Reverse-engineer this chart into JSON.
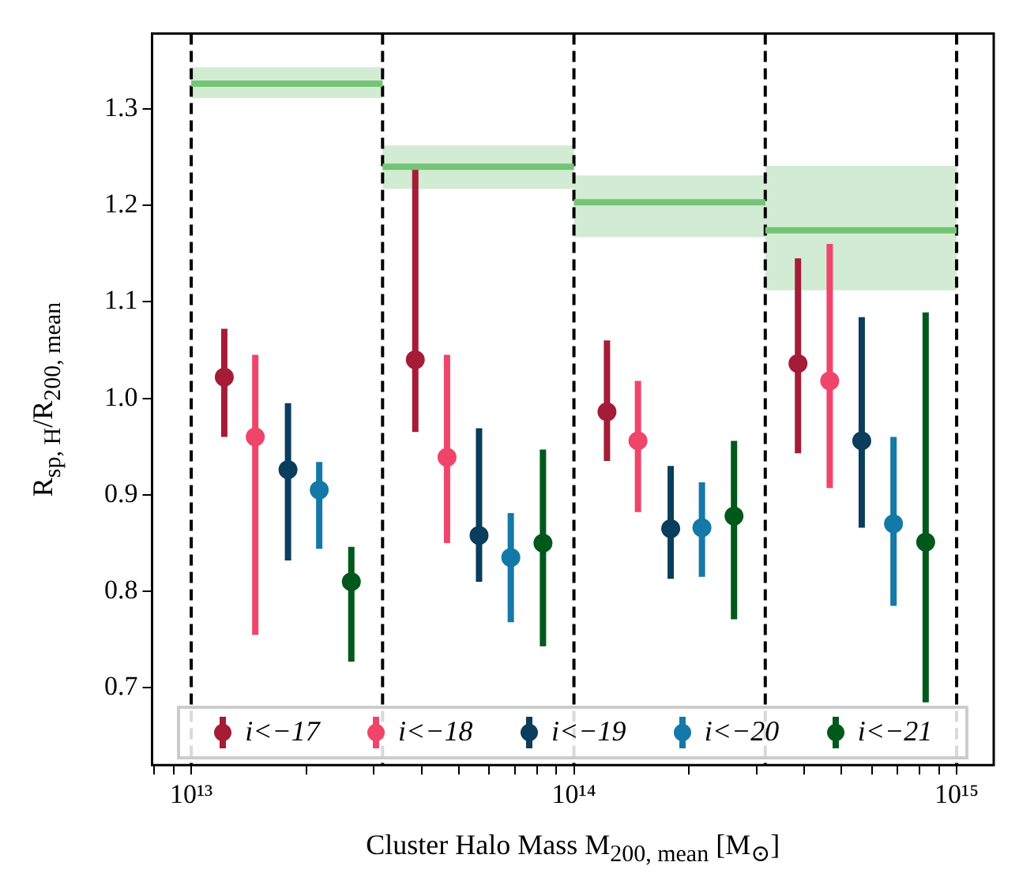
{
  "chart_data": {
    "type": "scatter",
    "xlabel": "Cluster Halo Mass M$_{200, mean}$ [M$_{⊙}$]",
    "ylabel": "R$_{sp, H}$/R$_{200, mean}$",
    "log": "x",
    "xlim": [
      7900000000000.0,
      1250000000000000.0
    ],
    "ylim": [
      0.62,
      1.378
    ],
    "xticks": [
      {
        "value": 8000000000000.0,
        "label": null
      },
      {
        "value": 9000000000000.0,
        "label": null
      },
      {
        "value": 10000000000000.0,
        "label": "10¹³"
      },
      {
        "value": 20000000000000.0,
        "label": null
      },
      {
        "value": 30000000000000.0,
        "label": null
      },
      {
        "value": 40000000000000.0,
        "label": null
      },
      {
        "value": 50000000000000.0,
        "label": null
      },
      {
        "value": 60000000000000.0,
        "label": null
      },
      {
        "value": 70000000000000.0,
        "label": null
      },
      {
        "value": 80000000000000.0,
        "label": null
      },
      {
        "value": 90000000000000.0,
        "label": null
      },
      {
        "value": 100000000000000.0,
        "label": "10¹⁴"
      },
      {
        "value": 200000000000000.0,
        "label": null
      },
      {
        "value": 300000000000000.0,
        "label": null
      },
      {
        "value": 400000000000000.0,
        "label": null
      },
      {
        "value": 500000000000000.0,
        "label": null
      },
      {
        "value": 600000000000000.0,
        "label": null
      },
      {
        "value": 700000000000000.0,
        "label": null
      },
      {
        "value": 800000000000000.0,
        "label": null
      },
      {
        "value": 900000000000000.0,
        "label": null
      },
      {
        "value": 1000000000000000.0,
        "label": "10¹⁵"
      }
    ],
    "yticks": [
      0.7,
      0.8,
      0.9,
      {
        "value": 1.0,
        "label": "1.0"
      },
      1.1,
      1.2,
      1.3
    ],
    "grid": false,
    "legend": "bottom",
    "series": [
      {
        "marker": "circle",
        "name": "i<−17",
        "color": "#a51c36",
        "x": [
          12200000000000.0,
          38500000000000.0,
          122000000000000.0,
          385000000000000.0
        ],
        "values": [
          1.022,
          1.04,
          0.986,
          1.036
        ],
        "errors": [
          [
            0.96,
            1.072
          ],
          [
            0.965,
            1.242
          ],
          [
            0.935,
            1.06
          ],
          [
            0.943,
            1.145
          ]
        ]
      },
      {
        "marker": "circle",
        "name": "i<−18",
        "color": "#f0456a",
        "x": [
          14700000000000.0,
          46600000000000.0,
          147000000000000.0,
          466000000000000.0
        ],
        "values": [
          0.96,
          0.939,
          0.956,
          1.018
        ],
        "errors": [
          [
            0.755,
            1.045
          ],
          [
            0.85,
            1.045
          ],
          [
            0.882,
            1.018
          ],
          [
            0.907,
            1.16
          ]
        ]
      },
      {
        "marker": "circle",
        "name": "i<−19",
        "color": "#0b3d5c",
        "x": [
          17900000000000.0,
          56500000000000.0,
          179000000000000.0,
          565000000000000.0
        ],
        "values": [
          0.926,
          0.858,
          0.865,
          0.956
        ],
        "errors": [
          [
            0.832,
            0.995
          ],
          [
            0.81,
            0.969
          ],
          [
            0.813,
            0.93
          ],
          [
            0.866,
            1.084
          ]
        ]
      },
      {
        "marker": "circle",
        "name": "i<−20",
        "color": "#1479a8",
        "x": [
          21600000000000.0,
          68400000000000.0,
          216000000000000.0,
          684000000000000.0
        ],
        "values": [
          0.905,
          0.835,
          0.866,
          0.87
        ],
        "errors": [
          [
            0.844,
            0.934
          ],
          [
            0.768,
            0.881
          ],
          [
            0.815,
            0.913
          ],
          [
            0.785,
            0.96
          ]
        ]
      },
      {
        "marker": "circle",
        "name": "i<−21",
        "color": "#00591a",
        "x": [
          26200000000000.0,
          83000000000000.0,
          262000000000000.0,
          830000000000000.0
        ],
        "values": [
          0.81,
          0.85,
          0.878,
          0.851
        ],
        "errors": [
          [
            0.727,
            0.846
          ],
          [
            0.743,
            0.947
          ],
          [
            0.771,
            0.956
          ],
          [
            0.685,
            1.089
          ]
        ]
      },
      {
        "type": "line",
        "color": "#74c476",
        "x": [
          10000000000000.0,
          31620000000000.0
        ],
        "values": [
          1.326,
          1.326
        ],
        "lower": [
          1.311,
          1.311
        ],
        "upper": [
          1.343,
          1.343
        ]
      },
      {
        "type": "line",
        "color": "#74c476",
        "x": [
          31620000000000.0,
          100000000000000.0
        ],
        "values": [
          1.24,
          1.24
        ],
        "lower": [
          1.217,
          1.217
        ],
        "upper": [
          1.262,
          1.262
        ]
      },
      {
        "type": "line",
        "color": "#74c476",
        "x": [
          100000000000000.0,
          316200000000000.0
        ],
        "values": [
          1.203,
          1.203
        ],
        "lower": [
          1.167,
          1.167
        ],
        "upper": [
          1.231,
          1.231
        ]
      },
      {
        "type": "line",
        "color": "#74c476",
        "x": [
          316200000000000.0,
          1000000000000000.0
        ],
        "values": [
          1.174,
          1.174
        ],
        "lower": [
          1.112,
          1.112
        ],
        "upper": [
          1.241,
          1.241
        ]
      }
    ],
    "ref_lines": [
      {
        "axis": "x",
        "value": 10000000000000.0,
        "color": "#000000",
        "line_style": "dashed"
      },
      {
        "axis": "x",
        "value": 31620000000000.0,
        "color": "#000000",
        "line_style": "dashed"
      },
      {
        "axis": "x",
        "value": 100000000000000.0,
        "color": "#000000",
        "line_style": "dashed"
      },
      {
        "axis": "x",
        "value": 316200000000000.0,
        "color": "#000000",
        "line_style": "dashed"
      },
      {
        "axis": "x",
        "value": 1000000000000000.0,
        "color": "#000000",
        "line_style": "dashed"
      }
    ]
  }
}
